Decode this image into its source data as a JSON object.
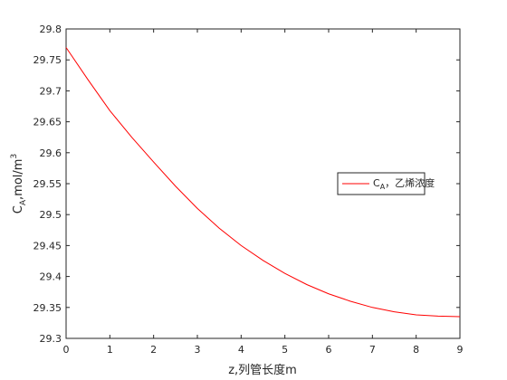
{
  "chart_data": {
    "type": "line",
    "xlabel": "z,列管长度m",
    "ylabel": [
      "C",
      "A",
      ",mol/m",
      "3"
    ],
    "x": [
      0,
      0.5,
      1,
      1.5,
      2,
      2.5,
      3,
      3.5,
      4,
      4.5,
      5,
      5.5,
      6,
      6.5,
      7,
      7.5,
      8,
      8.5,
      9
    ],
    "series": [
      {
        "name": [
          "C",
          "A",
          "，乙烯浓度"
        ],
        "color": "#ff0000",
        "values": [
          29.77,
          29.718,
          29.668,
          29.625,
          29.585,
          29.546,
          29.51,
          29.478,
          29.45,
          29.426,
          29.405,
          29.387,
          29.372,
          29.36,
          29.35,
          29.343,
          29.338,
          29.336,
          29.335
        ]
      }
    ],
    "xlim": [
      0,
      9
    ],
    "xticks": [
      0,
      1,
      2,
      3,
      4,
      5,
      6,
      7,
      8,
      9
    ],
    "ylim": [
      29.3,
      29.8
    ],
    "yticks": [
      29.3,
      29.35,
      29.4,
      29.45,
      29.5,
      29.55,
      29.6,
      29.65,
      29.7,
      29.75,
      29.8
    ],
    "grid": false,
    "legend": "east"
  }
}
